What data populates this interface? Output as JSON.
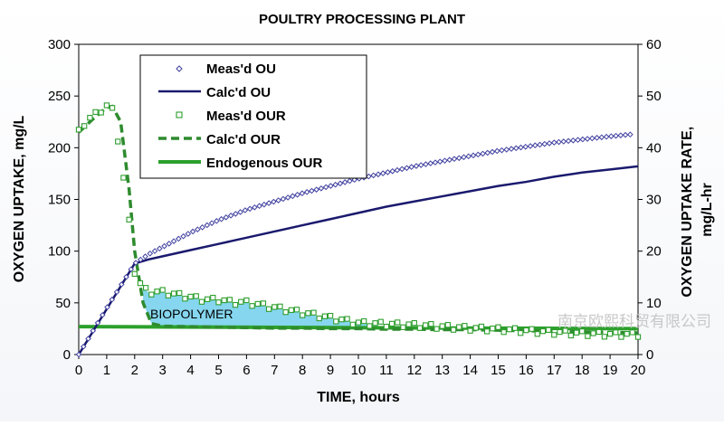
{
  "chart_data": {
    "type": "line",
    "title": "POULTRY PROCESSING PLANT",
    "xlabel": "TIME, hours",
    "ylabel": "OXYGEN UPTAKE, mg/L",
    "y2label": "OXYGEN UPTAKE RATE, mg/L-hr",
    "xlim": [
      0,
      20
    ],
    "ylim": [
      0,
      300
    ],
    "y2lim": [
      0,
      60
    ],
    "xticks": [
      0,
      1,
      2,
      3,
      4,
      5,
      6,
      7,
      8,
      9,
      10,
      11,
      12,
      13,
      14,
      15,
      16,
      17,
      18,
      19,
      20
    ],
    "yticks": [
      0,
      50,
      100,
      150,
      200,
      250,
      300
    ],
    "y2ticks": [
      0,
      10,
      20,
      30,
      40,
      50,
      60
    ],
    "annotation": "BIOPOLYMER",
    "watermark": "南京欧熙科贸有限公司",
    "legend": {
      "position": "top-left",
      "entries": [
        "Meas'd OU",
        "Calc'd OU",
        "Meas'd OUR",
        "Calc'd OUR",
        "Endogenous OUR"
      ]
    },
    "series": [
      {
        "name": "Meas'd OU",
        "axis": "left",
        "style": "diamond-markers",
        "color": "#4040a0",
        "x": [
          0,
          1,
          2,
          2.5,
          3,
          4,
          5,
          6,
          7,
          8,
          9,
          10,
          11,
          12,
          13,
          14,
          15,
          16,
          17,
          18,
          19,
          19.8
        ],
        "y": [
          0,
          45,
          88,
          97,
          104,
          118,
          130,
          140,
          148,
          156,
          163,
          170,
          176,
          182,
          187,
          192,
          197,
          201,
          205,
          208,
          211,
          213
        ]
      },
      {
        "name": "Calc'd OU",
        "axis": "left",
        "style": "solid-line",
        "color": "#1a1a6e",
        "x": [
          0,
          0.5,
          1,
          1.5,
          2,
          2.5,
          3,
          4,
          5,
          6,
          7,
          8,
          9,
          10,
          11,
          12,
          13,
          14,
          15,
          16,
          17,
          18,
          19,
          20
        ],
        "y": [
          0,
          22,
          44,
          66,
          88,
          92,
          95,
          101,
          107,
          113,
          119,
          125,
          131,
          137,
          143,
          148,
          153,
          158,
          163,
          167,
          172,
          176,
          179,
          182
        ]
      },
      {
        "name": "Meas'd OUR",
        "axis": "right",
        "style": "square-markers",
        "color": "#2e9e2e",
        "x": [
          0,
          0.25,
          0.5,
          0.75,
          1,
          1.25,
          1.5,
          1.75,
          2,
          2.25,
          2.5,
          3,
          3.5,
          4,
          4.5,
          5,
          5.5,
          6,
          6.5,
          7,
          7.5,
          8,
          8.5,
          9,
          9.5,
          10,
          11,
          12,
          13,
          14,
          15,
          16,
          17,
          18,
          19,
          20
        ],
        "y": [
          43,
          45,
          46,
          47,
          48,
          47,
          38,
          28,
          16,
          13,
          12,
          12,
          11.5,
          11,
          10.5,
          10.5,
          10,
          10,
          9.5,
          9,
          8.5,
          8,
          7.5,
          7,
          6.5,
          6,
          5.8,
          5.6,
          5.3,
          5,
          4.8,
          4.5,
          4.2,
          4,
          3.8,
          3.8
        ]
      },
      {
        "name": "Calc'd OUR",
        "axis": "right",
        "style": "dashed-line",
        "color": "#2e8b2e",
        "x": [
          0,
          0.5,
          1,
          1.2,
          1.5,
          1.8,
          2,
          2.3,
          2.6,
          3,
          4,
          5,
          6,
          7,
          8,
          9,
          10,
          11,
          12,
          13,
          14,
          15,
          16,
          17,
          18,
          19,
          20
        ],
        "y": [
          43,
          45.5,
          47.8,
          48,
          45,
          32,
          20,
          10,
          6,
          5.5,
          5.4,
          5.3,
          5.2,
          5.1,
          5.1,
          5,
          5,
          4.9,
          4.9,
          4.8,
          4.8,
          4.7,
          4.6,
          4.5,
          4.4,
          4.3,
          4.2
        ]
      },
      {
        "name": "Endogenous OUR",
        "axis": "right",
        "style": "thick-line",
        "color": "#2ca02c",
        "x": [
          0,
          20
        ],
        "y": [
          5.4,
          5
        ]
      }
    ]
  }
}
